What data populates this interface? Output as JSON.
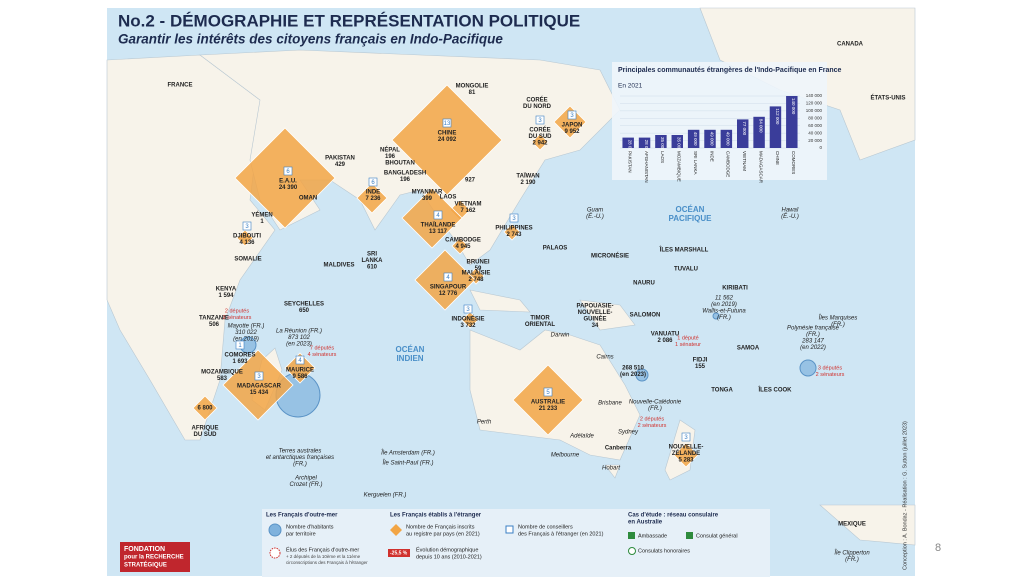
{
  "header": {
    "title": "No.2 - DÉMOGRAPHIE ET REPRÉSENTATION POLITIQUE",
    "subtitle": "Garantir les intérêts des citoyens français en Indo-Pacifique"
  },
  "page_number": "8",
  "credit": "Conception : A. Bondaz - Réalisation : G. Sutton (juillet 2023)",
  "logo": [
    "FONDATION",
    "pour la RECHERCHE",
    "STRATÉGIQUE"
  ],
  "chart_data": {
    "type": "bar",
    "title": "Principales communautés étrangères de l'Indo-Pacifique en France",
    "subtitle": "En 2021",
    "categories": [
      "PAKISTAN",
      "AFGHANISTAN",
      "LAOS",
      "MOZAMBIQUE",
      "SRI LANKA",
      "INDE",
      "CAMBODGE",
      "VIETNAM",
      "MADAGASCAR",
      "CHINE",
      "COMORES"
    ],
    "values": [
      28000,
      28000,
      35000,
      35000,
      49000,
      49000,
      49000,
      77000,
      84000,
      112000,
      140000
    ],
    "value_labels": [
      "28 000",
      "28 000",
      "35 000",
      "35 000",
      "49 000",
      "49 000",
      "49 000",
      "77 000",
      "84 000",
      "112 000",
      "140 000"
    ],
    "color": "#3a3d9a",
    "ylim": [
      0,
      140000
    ],
    "yticks": [
      0,
      {
        "value": 20000,
        "label": "20 000"
      },
      {
        "value": 40000,
        "label": "40 000"
      },
      {
        "value": 60000,
        "label": "60 000"
      },
      {
        "value": 80000,
        "label": "80 000"
      },
      {
        "value": 100000,
        "label": "100 000"
      },
      {
        "value": 120000,
        "label": "120 000"
      },
      {
        "value": 140000,
        "label": "140 000"
      }
    ]
  },
  "map": {
    "labels": [
      {
        "lines": [
          "CHINE",
          "24 092"
        ],
        "councillors": 13
      },
      {
        "lines": [
          "E.A.U.",
          "24 390"
        ],
        "councillors": 6
      },
      {
        "lines": [
          "OMAN"
        ]
      },
      {
        "lines": [
          "MONGOLIE",
          "81"
        ]
      },
      {
        "lines": [
          "CORÉE",
          "DU NORD"
        ]
      },
      {
        "lines": [
          "JAPON",
          "9 952"
        ],
        "councillors": 3
      },
      {
        "lines": [
          "CORÉE",
          "DU SUD",
          "2 942"
        ],
        "councillors": 3
      },
      {
        "lines": [
          "PAKISTAN",
          "429"
        ]
      },
      {
        "lines": [
          "NÉPAL",
          "196"
        ]
      },
      {
        "lines": [
          "BHOUTAN"
        ]
      },
      {
        "lines": [
          "BANGLADESH",
          "196"
        ]
      },
      {
        "lines": [
          "927"
        ]
      },
      {
        "lines": [
          "TAÏWAN",
          "2 190"
        ]
      },
      {
        "lines": [
          "INDE",
          "7 236"
        ],
        "councillors": 6
      },
      {
        "lines": [
          "MYANMAR",
          "399"
        ]
      },
      {
        "lines": [
          "LAOS"
        ]
      },
      {
        "lines": [
          "VIETNAM",
          "7 162"
        ]
      },
      {
        "lines": [
          "YÉMEN",
          "1"
        ]
      },
      {
        "lines": [
          "THAÏLANDE",
          "13 117"
        ],
        "councillors": 4
      },
      {
        "lines": [
          "DJIBOUTI",
          "4 136"
        ],
        "councillors": 3
      },
      {
        "lines": [
          "CAMBODGE",
          "4 945"
        ]
      },
      {
        "lines": [
          "PHILIPPINES",
          "2 743"
        ],
        "councillors": 3
      },
      {
        "lines": [
          "SOMALIE"
        ]
      },
      {
        "lines": [
          "MALDIVES"
        ]
      },
      {
        "lines": [
          "SRI",
          "LANKA",
          "610"
        ]
      },
      {
        "lines": [
          "BRUNEI",
          "59"
        ]
      },
      {
        "lines": [
          "MALAISIE",
          "2 748"
        ]
      },
      {
        "lines": [
          "PALAOS"
        ]
      },
      {
        "lines": [
          "MICRONÉSIE"
        ]
      },
      {
        "lines": [
          "ÎLES MARSHALL"
        ]
      },
      {
        "lines": [
          "TUVALU"
        ]
      },
      {
        "lines": [
          "NAURU"
        ]
      },
      {
        "lines": [
          "KIRIBATI"
        ]
      },
      {
        "lines": [
          "SINGAPOUR",
          "12 776"
        ],
        "councillors": 4
      },
      {
        "lines": [
          "KENYA",
          "1 594"
        ]
      },
      {
        "lines": [
          "SEYCHELLES",
          "650"
        ]
      },
      {
        "lines": [
          "TANZANIE",
          "506"
        ]
      },
      {
        "lines": [
          "INDONÉSIE",
          "3 732"
        ],
        "councillors": 3
      },
      {
        "lines": [
          "TIMOR",
          "ORIENTAL"
        ]
      },
      {
        "lines": [
          "PAPOUASIE-",
          "NOUVELLE-",
          "GUINÉE",
          "34"
        ]
      },
      {
        "lines": [
          "SALOMON"
        ]
      },
      {
        "lines": [
          "11 562",
          "(en 2019)",
          "Wallis-et-Futuna",
          "(FR.)"
        ]
      },
      {
        "lines": [
          "Mayotte (FR.)",
          "310 022",
          "(en 2019)"
        ]
      },
      {
        "lines": [
          "COMORES",
          "1 693"
        ],
        "councillors": 1
      },
      {
        "lines": [
          "La Réunion (FR.)",
          "873 102",
          "(en 2023)"
        ]
      },
      {
        "lines": [
          "VANUATU",
          "2 086"
        ]
      },
      {
        "lines": [
          "Polynésie française",
          "(FR.)",
          "283 147",
          "(en 2022)"
        ]
      },
      {
        "lines": [
          "Îles Marquises",
          "(FR.)"
        ]
      },
      {
        "lines": [
          "OCÉAN",
          "INDIEN"
        ]
      },
      {
        "lines": [
          "OCÉAN",
          "PACIFIQUE"
        ]
      },
      {
        "lines": [
          "MOZAMBIQUE",
          "583"
        ]
      },
      {
        "lines": [
          "MAURICE",
          "9 586"
        ],
        "councillors": 4
      },
      {
        "lines": [
          "MADAGASCAR",
          "15 434"
        ],
        "councillors": 3
      },
      {
        "lines": [
          "Darwin"
        ]
      },
      {
        "lines": [
          "Cairns"
        ]
      },
      {
        "lines": [
          "FIDJI",
          "155"
        ]
      },
      {
        "lines": [
          "268 510",
          "(en 2023)"
        ]
      },
      {
        "lines": [
          "SAMOA"
        ]
      },
      {
        "lines": [
          "TONGA"
        ]
      },
      {
        "lines": [
          "ÎLES COOK"
        ]
      },
      {
        "lines": [
          "AUSTRALIE",
          "21 233"
        ],
        "councillors": 5
      },
      {
        "lines": [
          "Nouvelle-Calédonie",
          "(FR.)"
        ]
      },
      {
        "lines": [
          "6 800"
        ]
      },
      {
        "lines": [
          "AFRIQUE",
          "DU SUD"
        ]
      },
      {
        "lines": [
          "Perth"
        ]
      },
      {
        "lines": [
          "Brisbane"
        ]
      },
      {
        "lines": [
          "Sydney"
        ]
      },
      {
        "lines": [
          "Adélaïde"
        ]
      },
      {
        "lines": [
          "Canberra"
        ]
      },
      {
        "lines": [
          "Melbourne"
        ]
      },
      {
        "lines": [
          "Hobart"
        ]
      },
      {
        "lines": [
          "NOUVELLE-",
          "ZÉLANDE",
          "5 283"
        ],
        "councillors": 3
      },
      {
        "lines": [
          "Terres australes",
          "et antarctiques françaises",
          "(FR.)"
        ]
      },
      {
        "lines": [
          "Île Amsterdam (FR.)"
        ]
      },
      {
        "lines": [
          "Île Saint-Paul (FR.)"
        ]
      },
      {
        "lines": [
          "Archipel",
          "Crozet (FR.)"
        ]
      },
      {
        "lines": [
          "Kerguelen (FR.)"
        ]
      },
      {
        "lines": [
          "Guam",
          "(É.-U.)"
        ]
      },
      {
        "lines": [
          "Hawaï",
          "(É.-U.)"
        ]
      },
      {
        "lines": [
          "CANADA"
        ]
      },
      {
        "lines": [
          "ÉTATS-UNIS"
        ]
      },
      {
        "lines": [
          "FRANCE"
        ]
      },
      {
        "lines": [
          "MEXIQUE"
        ]
      },
      {
        "lines": [
          "Île Clipperton",
          "(FR.)"
        ]
      },
      {
        "lines": [
          "2 députés",
          "2 sénateurs"
        ]
      },
      {
        "lines": [
          "7 députés",
          "4 sénateurs"
        ]
      },
      {
        "lines": [
          "1 député",
          "1 sénateur"
        ]
      },
      {
        "lines": [
          "3 députés",
          "2 sénateurs"
        ]
      },
      {
        "lines": [
          "2 députés",
          "2 sénateurs"
        ]
      }
    ]
  },
  "legend": {
    "overseas": {
      "title": "Les Français d'outre-mer",
      "population": [
        "Nombre d'habitants",
        "par territoire"
      ],
      "elected": "Élus des Français d'outre-mer",
      "elected_note": [
        "+ 2 députés de la 10ème et la 11ème",
        "circonscriptions des Français à l'étranger"
      ]
    },
    "abroad": {
      "title": "Les Français établis à l'étranger",
      "registered": [
        "Nombre de Français inscrits",
        "au registre par pays (en 2021)"
      ],
      "councillors": [
        "Nombre de conseillers",
        "des Français à l'étranger (en 2021)"
      ],
      "change_sample": "-25,5 %",
      "change": [
        "Évolution démographique",
        "depuis 10 ans (2010-2021)"
      ]
    },
    "case": {
      "title": [
        "Cas d'étude : réseau consulaire",
        "en Australie"
      ],
      "embassy": "Ambassade",
      "consulate": "Consulat général",
      "honorary": "Consulats honoraires"
    }
  }
}
